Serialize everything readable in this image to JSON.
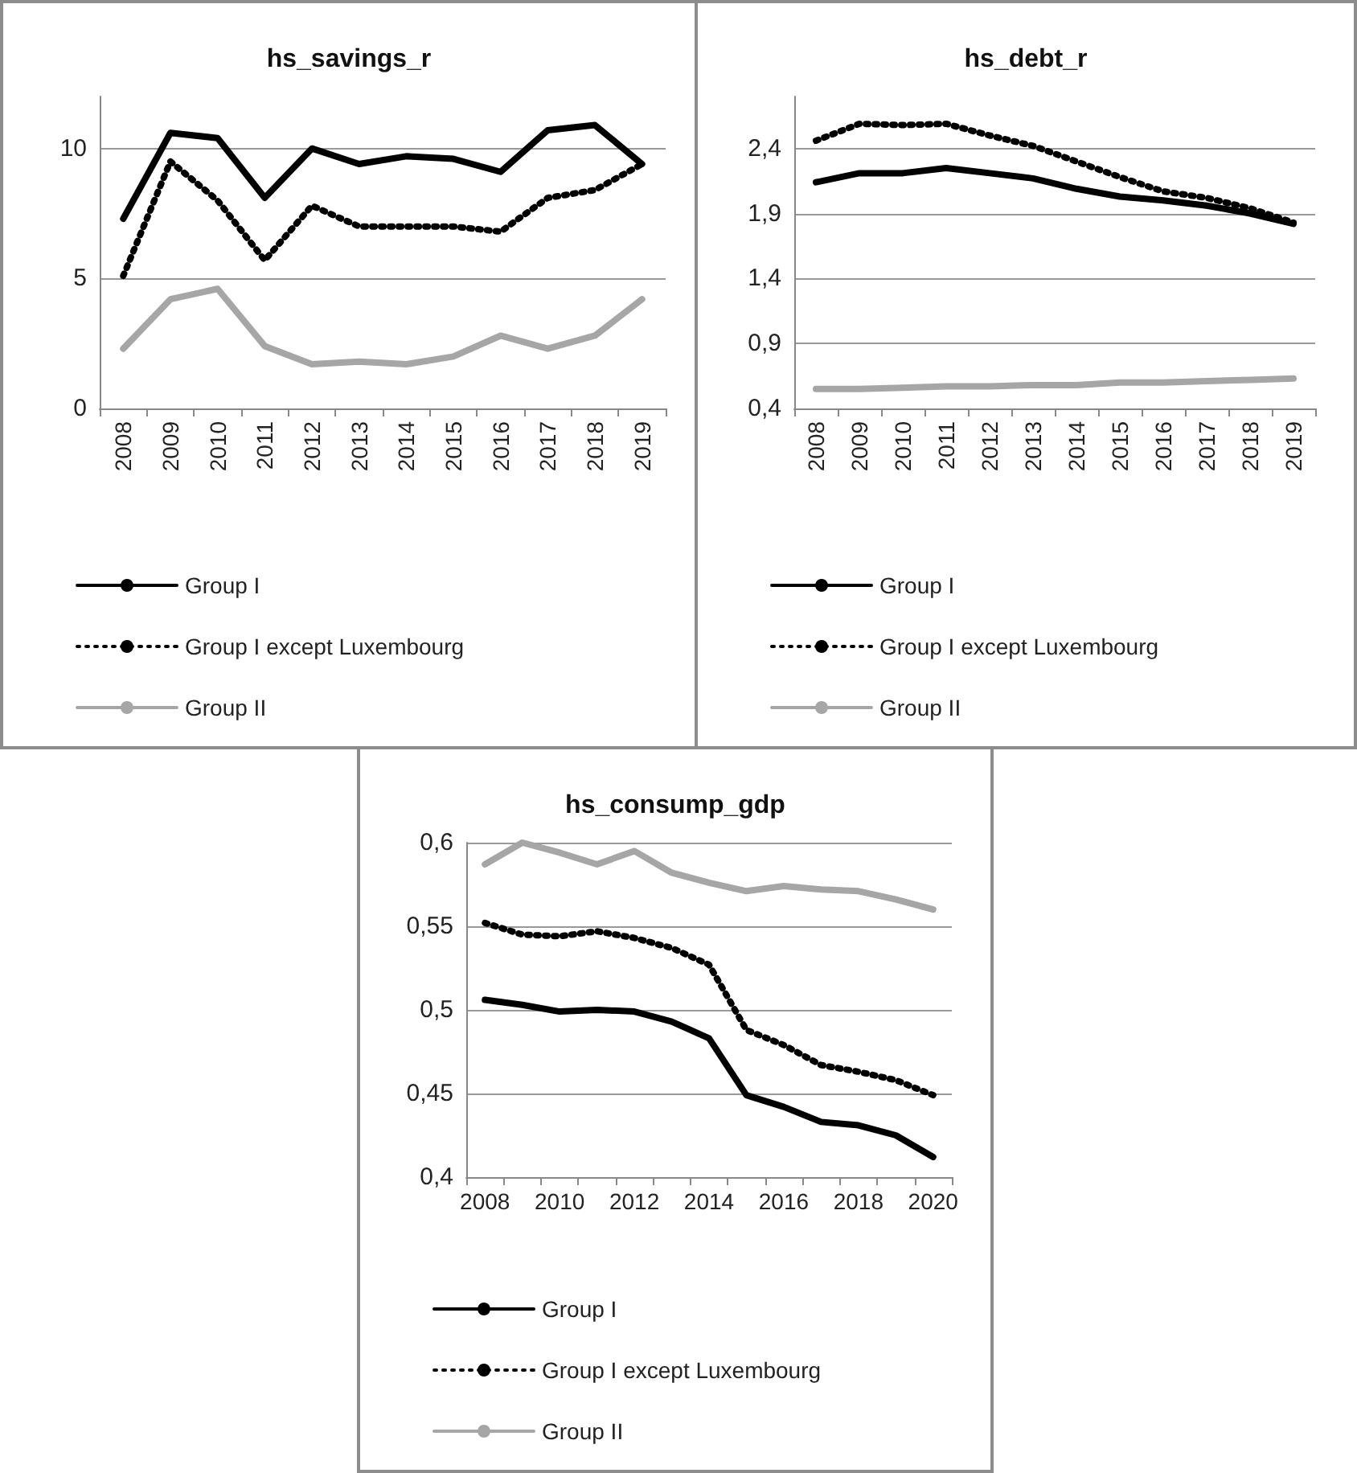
{
  "chart_data": [
    {
      "type": "line",
      "title": "hs_savings_r",
      "categories": [
        "2008",
        "2009",
        "2010",
        "2011",
        "2012",
        "2013",
        "2014",
        "2015",
        "2016",
        "2017",
        "2018",
        "2019"
      ],
      "ylim": [
        0,
        12
      ],
      "yticks": [
        0,
        5,
        10
      ],
      "grid": "y",
      "legend": "bottom",
      "marker": "none",
      "series": [
        {
          "name": "Group I",
          "color": "#000000",
          "line_style": "solid",
          "values": [
            7.3,
            10.6,
            10.4,
            8.1,
            10.0,
            9.4,
            9.7,
            9.6,
            9.1,
            10.7,
            10.9,
            9.4
          ]
        },
        {
          "name": "Group I except Luxembourg",
          "color": "#000000",
          "line_style": "dotted",
          "values": [
            5.1,
            9.5,
            8.0,
            5.7,
            7.8,
            7.0,
            7.0,
            7.0,
            6.8,
            8.1,
            8.4,
            9.4
          ]
        },
        {
          "name": "Group II",
          "color": "#a6a6a6",
          "line_style": "solid",
          "values": [
            2.3,
            4.2,
            4.6,
            2.4,
            1.7,
            1.8,
            1.7,
            2.0,
            2.8,
            2.3,
            2.8,
            4.2
          ]
        }
      ]
    },
    {
      "type": "line",
      "title": "hs_debt_r",
      "categories": [
        "2008",
        "2009",
        "2010",
        "2011",
        "2012",
        "2013",
        "2014",
        "2015",
        "2016",
        "2017",
        "2018",
        "2019"
      ],
      "ylim": [
        0.4,
        2.8
      ],
      "yticks": [
        {
          "value": 0.4,
          "label": "0,4"
        },
        {
          "value": 0.9,
          "label": "0,9"
        },
        {
          "value": 1.4,
          "label": "1,4"
        },
        {
          "value": 1.9,
          "label": "1,9"
        },
        {
          "value": 2.4,
          "label": "2,4"
        }
      ],
      "grid": "y",
      "legend": "bottom",
      "marker": "none",
      "series": [
        {
          "name": "Group I",
          "color": "#000000",
          "line_style": "solid",
          "values": [
            2.14,
            2.21,
            2.21,
            2.25,
            2.21,
            2.17,
            2.09,
            2.03,
            2.0,
            1.96,
            1.9,
            1.82
          ]
        },
        {
          "name": "Group I except Luxembourg",
          "color": "#000000",
          "line_style": "dotted",
          "values": [
            2.46,
            2.59,
            2.58,
            2.59,
            2.5,
            2.42,
            2.3,
            2.18,
            2.07,
            2.02,
            1.94,
            1.83
          ]
        },
        {
          "name": "Group II",
          "color": "#a6a6a6",
          "line_style": "solid",
          "values": [
            0.55,
            0.55,
            0.56,
            0.57,
            0.57,
            0.58,
            0.58,
            0.6,
            0.6,
            0.61,
            0.62,
            0.63
          ]
        }
      ]
    },
    {
      "type": "line",
      "title": "hs_consump_gdp",
      "categories": [
        "2008",
        null,
        "2010",
        null,
        "2012",
        null,
        "2014",
        null,
        "2016",
        null,
        "2018",
        null,
        "2020"
      ],
      "ylim": [
        0.4,
        0.6
      ],
      "yticks": [
        {
          "value": 0.4,
          "label": "0,4"
        },
        {
          "value": 0.45,
          "label": "0,45"
        },
        {
          "value": 0.5,
          "label": "0,5"
        },
        {
          "value": 0.55,
          "label": "0,55"
        },
        {
          "value": 0.6,
          "label": "0,6"
        }
      ],
      "grid": "y",
      "legend": "bottom",
      "marker": "none",
      "series": [
        {
          "name": "Group I",
          "color": "#000000",
          "line_style": "solid",
          "values": [
            0.506,
            0.503,
            0.499,
            0.5,
            0.499,
            0.493,
            0.483,
            0.449,
            0.442,
            0.433,
            0.431,
            0.425,
            0.412
          ]
        },
        {
          "name": "Group I except Luxembourg",
          "color": "#000000",
          "line_style": "dotted",
          "values": [
            0.552,
            0.545,
            0.544,
            0.547,
            0.543,
            0.537,
            0.527,
            0.488,
            0.479,
            0.467,
            0.463,
            0.458,
            0.449
          ]
        },
        {
          "name": "Group II",
          "color": "#a6a6a6",
          "line_style": "solid",
          "values": [
            0.587,
            0.6,
            0.594,
            0.587,
            0.595,
            0.582,
            0.576,
            0.571,
            0.574,
            0.572,
            0.571,
            0.566,
            0.56
          ]
        }
      ]
    }
  ]
}
